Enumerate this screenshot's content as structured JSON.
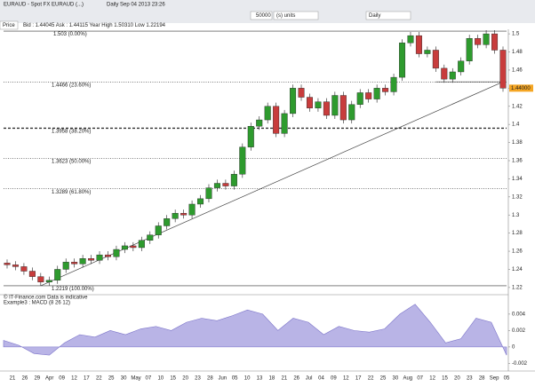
{
  "window": {
    "title": "EURAUD - Spot FX EURAUD (...)",
    "subtitle": "Daily  Sep 04 2013 23:26",
    "quantity": "50000",
    "units": "(s) units",
    "period": "Daily",
    "tab": "Price",
    "quote": "Bid : 1.44045  Ask : 1.44115  Year High 1.50310  Low 1.22194",
    "credit": "© IT-Finance.com  Data is indicative"
  },
  "chart_data": [
    {
      "type": "candlestick",
      "up_color": "#2e9b2e",
      "down_color": "#c83c3c",
      "open": [
        1.247,
        1.245,
        1.243,
        1.238,
        1.232,
        1.226,
        1.228,
        1.24,
        1.248,
        1.246,
        1.252,
        1.25,
        1.256,
        1.254,
        1.262,
        1.266,
        1.264,
        1.272,
        1.278,
        1.288,
        1.296,
        1.302,
        1.3,
        1.312,
        1.318,
        1.33,
        1.335,
        1.332,
        1.345,
        1.375,
        1.398,
        1.405,
        1.42,
        1.39,
        1.412,
        1.44,
        1.43,
        1.418,
        1.425,
        1.41,
        1.432,
        1.405,
        1.422,
        1.435,
        1.428,
        1.44,
        1.436,
        1.452,
        1.49,
        1.498,
        1.478,
        1.482,
        1.462,
        1.45,
        1.458,
        1.47,
        1.495,
        1.488,
        1.5,
        1.482
      ],
      "high": [
        1.251,
        1.249,
        1.247,
        1.242,
        1.236,
        1.232,
        1.244,
        1.252,
        1.252,
        1.256,
        1.256,
        1.26,
        1.26,
        1.266,
        1.27,
        1.27,
        1.276,
        1.282,
        1.292,
        1.3,
        1.306,
        1.306,
        1.316,
        1.322,
        1.334,
        1.339,
        1.339,
        1.349,
        1.379,
        1.402,
        1.409,
        1.424,
        1.424,
        1.416,
        1.444,
        1.444,
        1.434,
        1.429,
        1.429,
        1.436,
        1.436,
        1.426,
        1.439,
        1.439,
        1.444,
        1.444,
        1.456,
        1.494,
        1.502,
        1.502,
        1.486,
        1.486,
        1.466,
        1.462,
        1.474,
        1.499,
        1.499,
        1.504,
        1.504,
        1.486
      ],
      "low": [
        1.241,
        1.239,
        1.234,
        1.228,
        1.222,
        1.222,
        1.224,
        1.236,
        1.242,
        1.242,
        1.246,
        1.246,
        1.25,
        1.25,
        1.258,
        1.26,
        1.26,
        1.268,
        1.274,
        1.284,
        1.292,
        1.296,
        1.296,
        1.308,
        1.314,
        1.326,
        1.328,
        1.328,
        1.341,
        1.371,
        1.394,
        1.401,
        1.386,
        1.386,
        1.408,
        1.426,
        1.414,
        1.414,
        1.406,
        1.406,
        1.401,
        1.401,
        1.418,
        1.424,
        1.424,
        1.432,
        1.432,
        1.448,
        1.486,
        1.474,
        1.474,
        1.458,
        1.446,
        1.446,
        1.454,
        1.466,
        1.484,
        1.484,
        1.478,
        1.436
      ],
      "close": [
        1.245,
        1.243,
        1.238,
        1.232,
        1.226,
        1.228,
        1.24,
        1.248,
        1.246,
        1.252,
        1.25,
        1.256,
        1.254,
        1.262,
        1.266,
        1.264,
        1.272,
        1.278,
        1.288,
        1.296,
        1.302,
        1.3,
        1.312,
        1.318,
        1.33,
        1.335,
        1.332,
        1.345,
        1.375,
        1.398,
        1.405,
        1.42,
        1.39,
        1.412,
        1.44,
        1.43,
        1.418,
        1.425,
        1.41,
        1.432,
        1.405,
        1.422,
        1.435,
        1.428,
        1.44,
        1.436,
        1.452,
        1.49,
        1.498,
        1.478,
        1.482,
        1.462,
        1.45,
        1.458,
        1.47,
        1.495,
        1.488,
        1.5,
        1.482,
        1.44
      ],
      "ylim": [
        1.214,
        1.505
      ],
      "yticks": [
        1.5,
        1.48,
        1.46,
        1.44,
        1.42,
        1.4,
        1.38,
        1.36,
        1.34,
        1.32,
        1.3,
        1.28,
        1.26,
        1.24,
        1.22
      ],
      "levels": [
        {
          "value": 1.503,
          "label": "1.503 (0.00%)",
          "style": "solid"
        },
        {
          "value": 1.4466,
          "label": "1.4466 (23.60%)",
          "style": "dotted"
        },
        {
          "value": 1.3958,
          "label": "1.3958 (38.20%)",
          "style": "dashed"
        },
        {
          "value": 1.3623,
          "label": "1.3623 (50.00%)",
          "style": "dotted"
        },
        {
          "value": 1.3289,
          "label": "1.3289 (61.80%)",
          "style": "dotted"
        },
        {
          "value": 1.2219,
          "label": "1.2219 (100.00%)",
          "style": "solid"
        }
      ],
      "lines": [
        {
          "from": [
            4,
            1.2219
          ],
          "to": [
            59,
            1.447
          ]
        },
        {
          "from": [
            51,
            1.447
          ],
          "to": [
            59,
            1.447
          ]
        }
      ],
      "last": {
        "value": 1.44,
        "label": "1.44000"
      },
      "x_labels": [
        "21",
        "26",
        "29",
        "Apr",
        "09",
        "12",
        "17",
        "22",
        "25",
        "30",
        "May",
        "07",
        "10",
        "15",
        "20",
        "23",
        "28",
        "Jun",
        "05",
        "10",
        "13",
        "18",
        "21",
        "26",
        "Jul",
        "04",
        "09",
        "12",
        "17",
        "22",
        "25",
        "30",
        "Aug",
        "07",
        "12",
        "15",
        "20",
        "23",
        "28",
        "Sep",
        "05"
      ]
    },
    {
      "type": "area",
      "name": "Example3 : MACD (8 26 12)",
      "color": "#b9b4e6",
      "values": [
        0.0008,
        0.0002,
        -0.0008,
        -0.001,
        0.0005,
        0.0015,
        0.0012,
        0.002,
        0.0015,
        0.0022,
        0.0025,
        0.002,
        0.003,
        0.0035,
        0.0032,
        0.0038,
        0.0045,
        0.004,
        0.002,
        0.0035,
        0.003,
        0.0015,
        0.0025,
        0.002,
        0.0018,
        0.0022,
        0.004,
        0.0052,
        0.003,
        0.0005,
        0.001,
        0.0035,
        0.003,
        -0.001
      ],
      "ylim": [
        -0.0025,
        0.0055
      ],
      "yticks": [
        0.004,
        0.002,
        0,
        -0.002
      ]
    }
  ]
}
